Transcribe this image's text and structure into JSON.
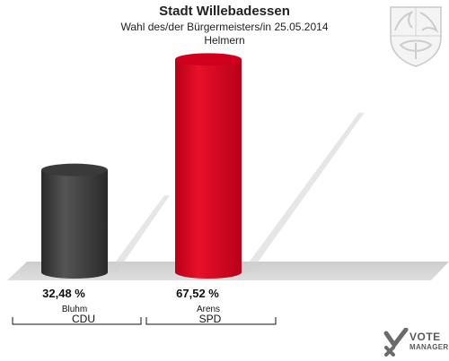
{
  "header": {
    "title": "Stadt Willebadessen",
    "subtitle": "Wahl des/der Bürgermeisters/in  25.05.2014",
    "location": "Helmern"
  },
  "chart_data": {
    "type": "bar",
    "title": "Stadt Willebadessen",
    "categories": [
      "Bluhm",
      "Arens"
    ],
    "parties": [
      "CDU",
      "SPD"
    ],
    "values": [
      32.48,
      67.52
    ],
    "value_labels": [
      "32,48 %",
      "67,52 %"
    ],
    "colors": [
      "#3a3a3a",
      "#d0001c"
    ],
    "ylim": [
      0,
      70
    ],
    "grid": false,
    "legend": "none"
  },
  "branding": {
    "logo_line1": "VOTE",
    "logo_line2": "MANAGER"
  }
}
